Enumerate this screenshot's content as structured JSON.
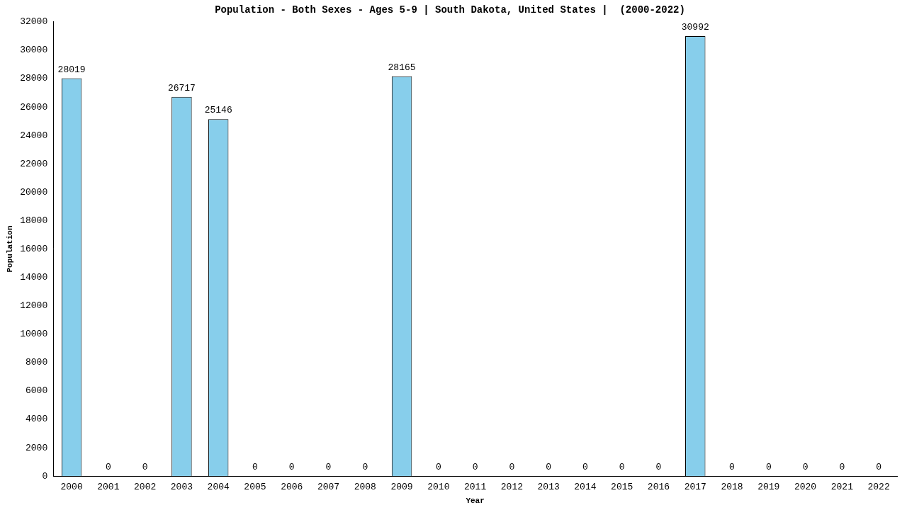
{
  "chart_data": {
    "type": "bar",
    "title": "Population - Both Sexes - Ages 5-9 | South Dakota, United States |  (2000-2022)",
    "x_label": "Year",
    "y_label": "Population",
    "categories": [
      "2000",
      "2001",
      "2002",
      "2003",
      "2004",
      "2005",
      "2006",
      "2007",
      "2008",
      "2009",
      "2010",
      "2011",
      "2012",
      "2013",
      "2014",
      "2015",
      "2016",
      "2017",
      "2018",
      "2019",
      "2020",
      "2021",
      "2022"
    ],
    "values": [
      28019,
      0,
      0,
      26717,
      25146,
      0,
      0,
      0,
      0,
      28165,
      0,
      0,
      0,
      0,
      0,
      0,
      0,
      30992,
      0,
      0,
      0,
      0,
      0
    ],
    "color": "#87ceeb",
    "ylim": [
      0,
      32000
    ],
    "yticks": [
      0,
      2000,
      4000,
      6000,
      8000,
      10000,
      12000,
      14000,
      16000,
      18000,
      20000,
      22000,
      24000,
      26000,
      28000,
      30000,
      32000
    ],
    "grid": false,
    "data_labels": true
  }
}
